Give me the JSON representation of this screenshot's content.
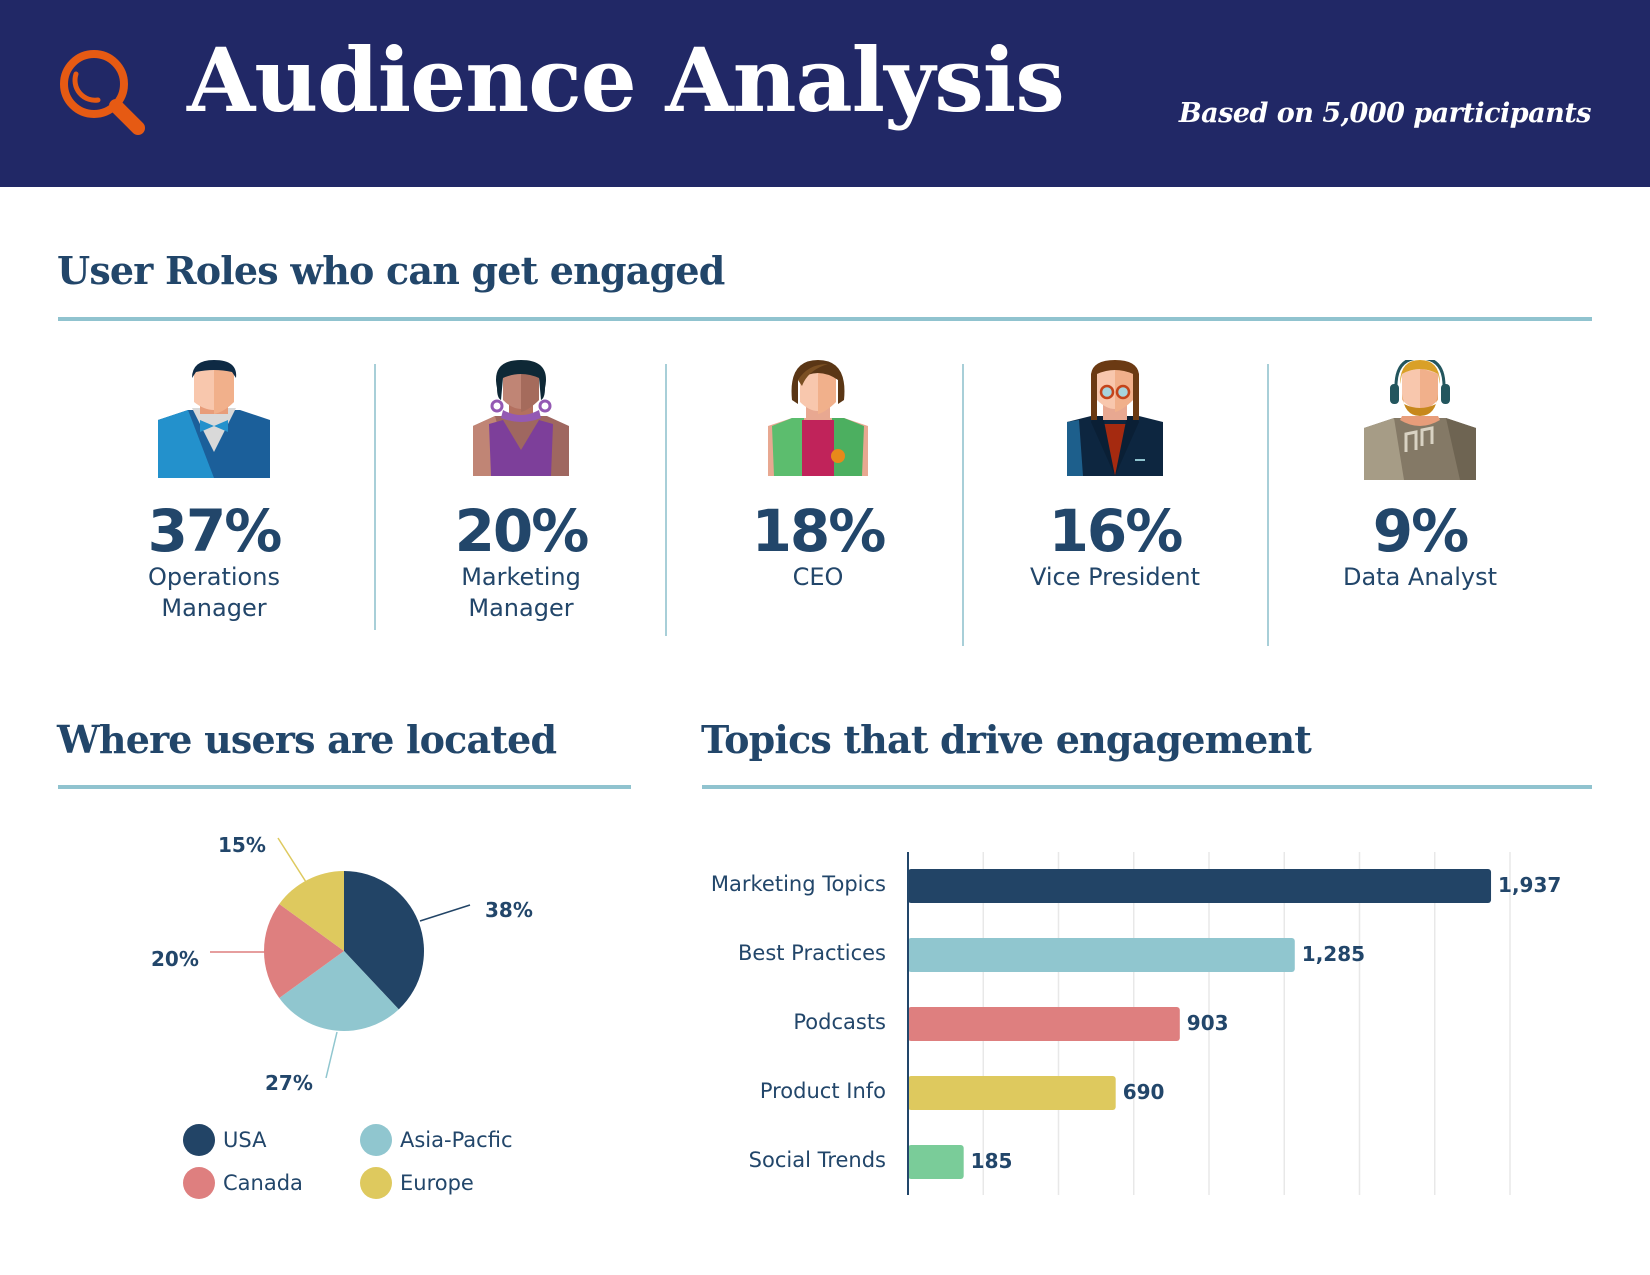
{
  "header": {
    "title": "Audience Analysis",
    "subtitle": "Based on 5,000 participants",
    "icon": "magnifier-icon",
    "background": "#212866",
    "accent": "#e65a13"
  },
  "roles_section": {
    "title": "User Roles who can get engaged",
    "personas": [
      {
        "percent": "37%",
        "label": "Operations\nManager",
        "icon": "businessman-bowtie-avatar-icon"
      },
      {
        "percent": "20%",
        "label": "Marketing\nManager",
        "icon": "woman-earrings-avatar-icon"
      },
      {
        "percent": "18%",
        "label": "CEO",
        "icon": "woman-green-vest-avatar-icon"
      },
      {
        "percent": "16%",
        "label": "Vice President",
        "icon": "woman-glasses-avatar-icon"
      },
      {
        "percent": "9%",
        "label": "Data Analyst",
        "icon": "man-headphones-avatar-icon"
      }
    ]
  },
  "location_section": {
    "title": "Where users are located",
    "legend": [
      {
        "label": "USA",
        "color": "#224466"
      },
      {
        "label": "Asia-Pacfic",
        "color": "#90c6cf"
      },
      {
        "label": "Canada",
        "color": "#de7f7f"
      },
      {
        "label": "Europe",
        "color": "#dec95e"
      }
    ]
  },
  "topics_section": {
    "title": "Topics that drive engagement"
  },
  "chart_data": [
    {
      "type": "pie",
      "title": "Where users are located",
      "categories": [
        "USA",
        "Asia-Pacfic",
        "Canada",
        "Europe"
      ],
      "values": [
        38,
        27,
        20,
        15
      ],
      "labels": [
        "38%",
        "27%",
        "20%",
        "15%"
      ],
      "colors": [
        "#224466",
        "#90c6cf",
        "#de7f7f",
        "#dec95e"
      ],
      "start_angle": "12 o'clock, clockwise",
      "legend": "bottom"
    },
    {
      "type": "bar",
      "orientation": "horizontal",
      "title": "Topics that drive engagement",
      "categories": [
        "Marketing Topics",
        "Best Practices",
        "Podcasts",
        "Product Info",
        "Social Trends"
      ],
      "values": [
        1937,
        1285,
        903,
        690,
        185
      ],
      "value_labels": [
        "1,937",
        "1,285",
        "903",
        "690",
        "185"
      ],
      "colors": [
        "#224466",
        "#90c6cf",
        "#de7f7f",
        "#dec95e",
        "#7acc99"
      ],
      "xlim": [
        0,
        2000
      ],
      "grid_step": 250,
      "grid": true,
      "xlabel": "",
      "ylabel": ""
    }
  ]
}
